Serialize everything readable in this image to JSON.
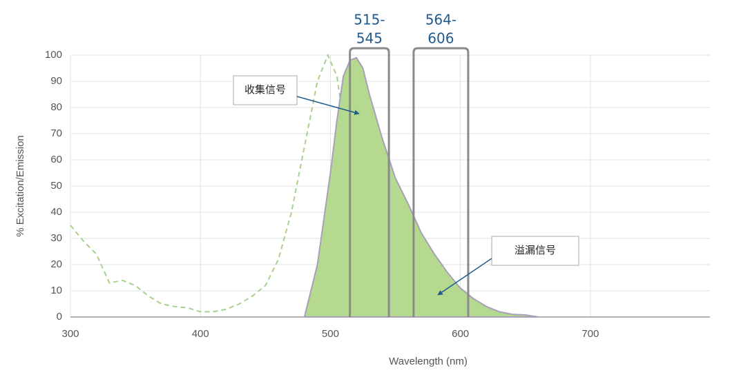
{
  "chart_data": {
    "type": "line",
    "xlabel": "Wavelength (nm)",
    "ylabel": "% Excitation/Emission",
    "xlim": [
      300,
      792
    ],
    "ylim": [
      0,
      100
    ],
    "xticks": [
      300,
      400,
      500,
      600,
      700
    ],
    "yticks": [
      0,
      10,
      20,
      30,
      40,
      50,
      60,
      70,
      80,
      90,
      100
    ],
    "grid": true,
    "series": [
      {
        "color": "#a8d08d",
        "style": "dashed",
        "x": [
          300,
          310,
          320,
          330,
          340,
          350,
          360,
          370,
          380,
          390,
          400,
          410,
          420,
          430,
          440,
          450,
          460,
          470,
          480,
          490,
          498,
          505,
          510,
          515,
          520,
          525,
          530,
          540,
          550
        ],
        "values": [
          35,
          29,
          24,
          13,
          14,
          12,
          8,
          5,
          4,
          3.5,
          2,
          2,
          3,
          5,
          8,
          12,
          22,
          40,
          65,
          90,
          100,
          92,
          75,
          50,
          30,
          15,
          8,
          2,
          0
        ]
      },
      {
        "color": "#b5d98f",
        "style": "area",
        "x": [
          480,
          490,
          500,
          505,
          510,
          515,
          520,
          525,
          530,
          540,
          550,
          560,
          570,
          580,
          590,
          600,
          610,
          620,
          630,
          640,
          650,
          660
        ],
        "values": [
          0,
          20,
          55,
          75,
          92,
          98,
          99,
          95,
          85,
          68,
          53,
          43,
          32,
          24,
          17,
          11,
          7,
          4,
          2,
          1,
          0.8,
          0
        ]
      }
    ],
    "bands": [
      {
        "start": 515,
        "end": 545,
        "label": [
          "515-",
          "545"
        ]
      },
      {
        "start": 564,
        "end": 606,
        "label": [
          "564-",
          "606"
        ]
      }
    ],
    "annotations": [
      "收集信号",
      "溢漏信号"
    ]
  }
}
